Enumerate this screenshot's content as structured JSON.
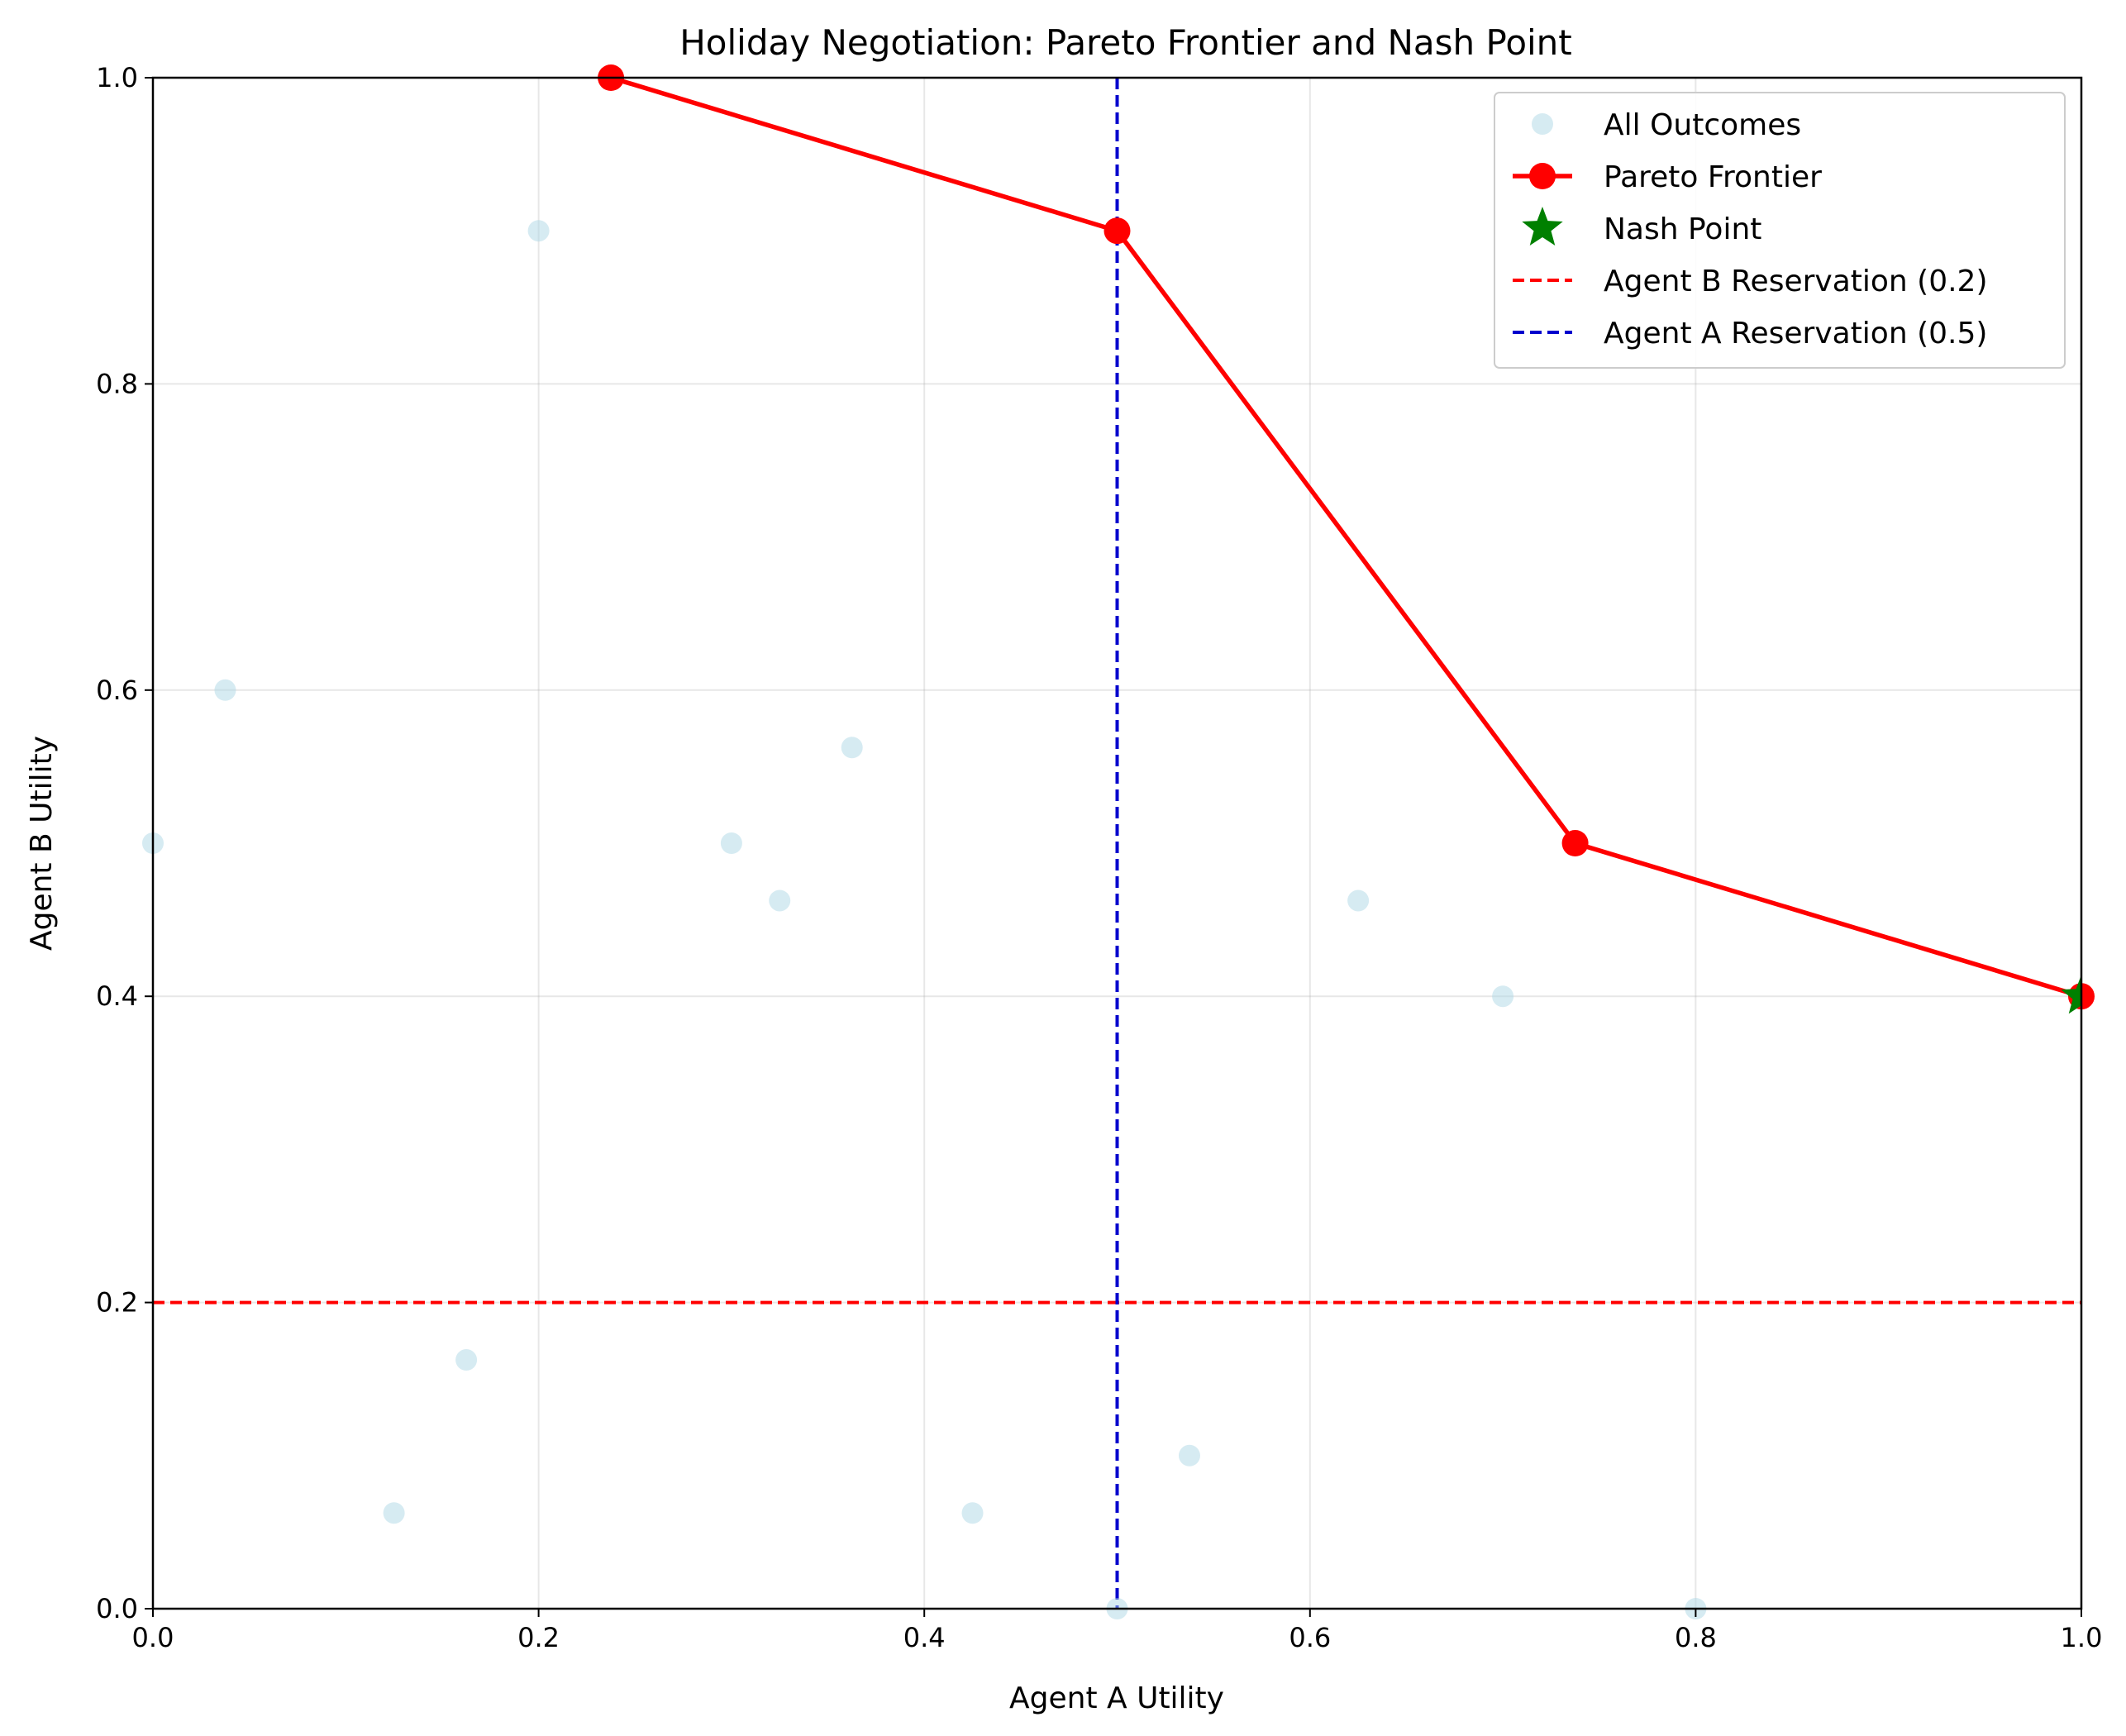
{
  "chart_data": {
    "type": "scatter",
    "title": "Holiday Negotiation: Pareto Frontier and Nash Point",
    "xlabel": "Agent A Utility",
    "ylabel": "Agent B Utility",
    "xlim": [
      0,
      1
    ],
    "ylim": [
      0,
      1
    ],
    "xticks": [
      0.0,
      0.2,
      0.4,
      0.6,
      0.8,
      1.0
    ],
    "yticks": [
      0.0,
      0.2,
      0.4,
      0.6,
      0.8,
      1.0
    ],
    "xtick_labels": [
      "0.0",
      "0.2",
      "0.4",
      "0.6",
      "0.8",
      "1.0"
    ],
    "ytick_labels": [
      "0.0",
      "0.2",
      "0.4",
      "0.6",
      "0.8",
      "1.0"
    ],
    "grid": true,
    "legend_position": "top-right",
    "series": [
      {
        "name": "All Outcomes",
        "kind": "scatter",
        "color": "#add8e6",
        "points": [
          [
            0.0,
            0.5
          ],
          [
            0.0375,
            0.6
          ],
          [
            0.2,
            0.9
          ],
          [
            0.125,
            0.0625
          ],
          [
            0.1625,
            0.1625
          ],
          [
            0.3,
            0.5
          ],
          [
            0.325,
            0.4625
          ],
          [
            0.3625,
            0.5625
          ],
          [
            0.425,
            0.0625
          ],
          [
            0.5,
            0.0
          ],
          [
            0.5375,
            0.1
          ],
          [
            0.625,
            0.4625
          ],
          [
            0.7,
            0.4
          ],
          [
            0.8,
            0.0
          ],
          [
            0.2375,
            1.0
          ],
          [
            0.5,
            0.9
          ],
          [
            0.7375,
            0.5
          ],
          [
            1.0,
            0.4
          ]
        ]
      },
      {
        "name": "Pareto Frontier",
        "kind": "line-marker",
        "color": "#ff0000",
        "points": [
          [
            0.2375,
            1.0
          ],
          [
            0.5,
            0.9
          ],
          [
            0.7375,
            0.5
          ],
          [
            1.0,
            0.4
          ]
        ]
      },
      {
        "name": "Nash Point",
        "kind": "star",
        "color": "#008000",
        "points": [
          [
            1.0,
            0.4
          ]
        ]
      },
      {
        "name": "Agent B Reservation (0.2)",
        "kind": "hline",
        "color": "#ff0000",
        "value": 0.2
      },
      {
        "name": "Agent A Reservation (0.5)",
        "kind": "vline",
        "color": "#0000cd",
        "value": 0.5
      }
    ]
  }
}
